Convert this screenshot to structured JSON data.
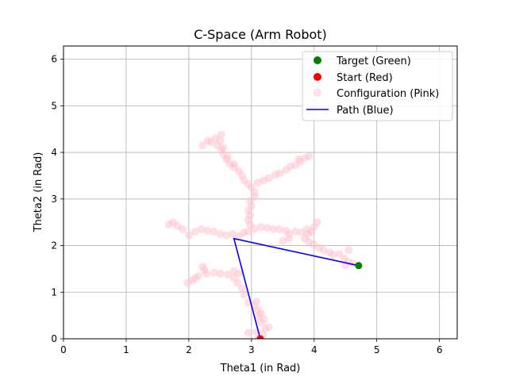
{
  "chart_data": {
    "type": "scatter",
    "title": "C-Space (Arm Robot)",
    "xlabel": "Theta1 (in Rad)",
    "ylabel": "Theta2 (in Rad)",
    "xlim": [
      0,
      6.283
    ],
    "ylim": [
      0,
      6.283
    ],
    "xticks": [
      0,
      1,
      2,
      3,
      4,
      5,
      6
    ],
    "yticks": [
      0,
      1,
      2,
      3,
      4,
      5,
      6
    ],
    "grid": true,
    "legend_position": "top-right",
    "legend": [
      {
        "label": "Target (Green)",
        "kind": "marker",
        "color": "#008000"
      },
      {
        "label": "Start (Red)",
        "kind": "marker",
        "color": "#ff0000"
      },
      {
        "label": "Configuration (Pink)",
        "kind": "marker",
        "color": "#ffc0cb"
      },
      {
        "label": "Path (Blue)",
        "kind": "line",
        "color": "#0000ff"
      }
    ],
    "series": [
      {
        "name": "Configuration (Pink)",
        "kind": "scatter",
        "color": "#ffc0cb",
        "points": [
          [
            3.12,
            0.02
          ],
          [
            3.18,
            0.1
          ],
          [
            3.08,
            0.15
          ],
          [
            2.95,
            0.13
          ],
          [
            3.22,
            0.22
          ],
          [
            3.28,
            0.25
          ],
          [
            3.15,
            0.35
          ],
          [
            3.2,
            0.42
          ],
          [
            3.12,
            0.48
          ],
          [
            3.15,
            0.55
          ],
          [
            3.1,
            0.62
          ],
          [
            3.05,
            0.72
          ],
          [
            2.95,
            0.78
          ],
          [
            3.08,
            0.8
          ],
          [
            2.88,
            0.95
          ],
          [
            2.85,
            1.08
          ],
          [
            2.78,
            1.2
          ],
          [
            2.72,
            1.3
          ],
          [
            2.8,
            1.4
          ],
          [
            2.72,
            1.45
          ],
          [
            2.62,
            1.38
          ],
          [
            2.5,
            1.4
          ],
          [
            2.4,
            1.42
          ],
          [
            2.28,
            1.4
          ],
          [
            2.22,
            1.55
          ],
          [
            2.25,
            1.48
          ],
          [
            2.15,
            1.35
          ],
          [
            2.05,
            1.25
          ],
          [
            1.98,
            1.2
          ],
          [
            2.1,
            1.3
          ],
          [
            2.0,
            2.22
          ],
          [
            2.1,
            2.3
          ],
          [
            2.2,
            2.35
          ],
          [
            2.3,
            2.32
          ],
          [
            2.4,
            2.3
          ],
          [
            2.5,
            2.25
          ],
          [
            2.6,
            2.22
          ],
          [
            2.7,
            2.25
          ],
          [
            2.8,
            2.2
          ],
          [
            2.88,
            2.28
          ],
          [
            1.75,
            2.5
          ],
          [
            1.68,
            2.45
          ],
          [
            1.82,
            2.42
          ],
          [
            1.9,
            2.35
          ],
          [
            2.95,
            2.3
          ],
          [
            2.98,
            2.45
          ],
          [
            2.95,
            2.55
          ],
          [
            2.98,
            2.65
          ],
          [
            2.95,
            2.75
          ],
          [
            3.0,
            2.85
          ],
          [
            2.98,
            2.95
          ],
          [
            3.05,
            3.05
          ],
          [
            3.05,
            3.15
          ],
          [
            3.0,
            3.25
          ],
          [
            2.95,
            3.32
          ],
          [
            2.88,
            3.4
          ],
          [
            2.85,
            3.5
          ],
          [
            2.8,
            3.6
          ],
          [
            2.72,
            3.68
          ],
          [
            2.65,
            3.75
          ],
          [
            2.6,
            3.85
          ],
          [
            2.55,
            3.95
          ],
          [
            2.52,
            4.05
          ],
          [
            2.45,
            4.15
          ],
          [
            2.35,
            4.22
          ],
          [
            2.22,
            4.15
          ],
          [
            2.3,
            4.25
          ],
          [
            2.42,
            4.3
          ],
          [
            2.5,
            4.25
          ],
          [
            2.52,
            4.38
          ],
          [
            2.55,
            4.1
          ],
          [
            2.62,
            3.9
          ],
          [
            2.72,
            3.75
          ],
          [
            3.1,
            3.35
          ],
          [
            3.2,
            3.4
          ],
          [
            3.28,
            3.45
          ],
          [
            3.38,
            3.52
          ],
          [
            3.45,
            3.55
          ],
          [
            3.55,
            3.62
          ],
          [
            3.62,
            3.7
          ],
          [
            3.7,
            3.72
          ],
          [
            3.78,
            3.8
          ],
          [
            3.85,
            3.88
          ],
          [
            3.92,
            3.92
          ],
          [
            3.75,
            3.85
          ],
          [
            3.05,
            2.35
          ],
          [
            3.15,
            2.4
          ],
          [
            3.25,
            2.38
          ],
          [
            3.35,
            2.35
          ],
          [
            3.45,
            2.35
          ],
          [
            3.55,
            2.32
          ],
          [
            3.6,
            2.25
          ],
          [
            3.7,
            2.3
          ],
          [
            3.8,
            2.28
          ],
          [
            3.9,
            2.25
          ],
          [
            3.95,
            2.3
          ],
          [
            4.0,
            2.4
          ],
          [
            4.05,
            2.5
          ],
          [
            3.88,
            2.35
          ],
          [
            3.85,
            2.15
          ],
          [
            3.92,
            2.08
          ],
          [
            4.0,
            2.02
          ],
          [
            4.08,
            1.95
          ],
          [
            4.15,
            1.9
          ],
          [
            4.25,
            1.85
          ],
          [
            4.3,
            1.8
          ],
          [
            4.4,
            1.82
          ],
          [
            4.48,
            1.72
          ],
          [
            4.55,
            1.65
          ],
          [
            4.5,
            1.58
          ],
          [
            4.62,
            1.62
          ],
          [
            4.55,
            1.9
          ],
          [
            3.6,
            2.15
          ],
          [
            3.5,
            2.1
          ]
        ]
      },
      {
        "name": "Path (Blue)",
        "kind": "line",
        "color": "#0000ff",
        "points": [
          [
            4.71,
            1.57
          ],
          [
            2.72,
            2.15
          ],
          [
            3.14,
            0.0
          ]
        ]
      },
      {
        "name": "Start (Red)",
        "kind": "marker",
        "color": "#ff0000",
        "points": [
          [
            3.14,
            0.0
          ]
        ]
      },
      {
        "name": "Target (Green)",
        "kind": "marker",
        "color": "#008000",
        "points": [
          [
            4.71,
            1.57
          ]
        ]
      }
    ]
  }
}
